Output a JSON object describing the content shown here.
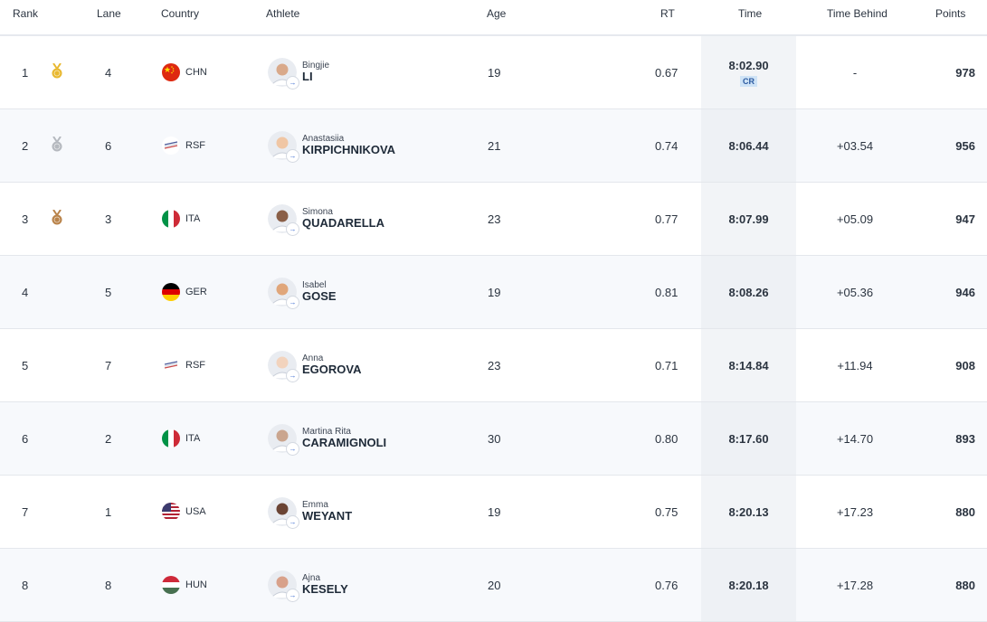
{
  "columns": {
    "rank": "Rank",
    "lane": "Lane",
    "country": "Country",
    "athlete": "Athlete",
    "age": "Age",
    "rt": "RT",
    "time": "Time",
    "time_behind": "Time Behind",
    "points": "Points"
  },
  "colors": {
    "gold": "#e8b830",
    "silver": "#b5b9bf",
    "bronze": "#b9834a",
    "cr_badge_bg": "#cfe3f6",
    "cr_badge_text": "#2c5aa0",
    "time_column_bg": "#f2f4f7"
  },
  "rows": [
    {
      "rank": "1",
      "medal": "gold-medal-icon",
      "lane": "4",
      "country": "CHN",
      "flag": "china-flag-icon",
      "given_name": "Bingjie",
      "family_name": "LI",
      "age": "19",
      "rt": "0.67",
      "time": "8:02.90",
      "record": "CR",
      "time_behind": "-",
      "points": "978"
    },
    {
      "rank": "2",
      "medal": "silver-medal-icon",
      "lane": "6",
      "country": "RSF",
      "flag": "rsf-flag-icon",
      "given_name": "Anastasiia",
      "family_name": "KIRPICHNIKOVA",
      "age": "21",
      "rt": "0.74",
      "time": "8:06.44",
      "record": "",
      "time_behind": "+03.54",
      "points": "956"
    },
    {
      "rank": "3",
      "medal": "bronze-medal-icon",
      "lane": "3",
      "country": "ITA",
      "flag": "italy-flag-icon",
      "given_name": "Simona",
      "family_name": "QUADARELLA",
      "age": "23",
      "rt": "0.77",
      "time": "8:07.99",
      "record": "",
      "time_behind": "+05.09",
      "points": "947"
    },
    {
      "rank": "4",
      "medal": "",
      "lane": "5",
      "country": "GER",
      "flag": "germany-flag-icon",
      "given_name": "Isabel",
      "family_name": "GOSE",
      "age": "19",
      "rt": "0.81",
      "time": "8:08.26",
      "record": "",
      "time_behind": "+05.36",
      "points": "946"
    },
    {
      "rank": "5",
      "medal": "",
      "lane": "7",
      "country": "RSF",
      "flag": "rsf-flag-icon",
      "given_name": "Anna",
      "family_name": "EGOROVA",
      "age": "23",
      "rt": "0.71",
      "time": "8:14.84",
      "record": "",
      "time_behind": "+11.94",
      "points": "908"
    },
    {
      "rank": "6",
      "medal": "",
      "lane": "2",
      "country": "ITA",
      "flag": "italy-flag-icon",
      "given_name": "Martina Rita",
      "family_name": "CARAMIGNOLI",
      "age": "30",
      "rt": "0.80",
      "time": "8:17.60",
      "record": "",
      "time_behind": "+14.70",
      "points": "893"
    },
    {
      "rank": "7",
      "medal": "",
      "lane": "1",
      "country": "USA",
      "flag": "usa-flag-icon",
      "given_name": "Emma",
      "family_name": "WEYANT",
      "age": "19",
      "rt": "0.75",
      "time": "8:20.13",
      "record": "",
      "time_behind": "+17.23",
      "points": "880"
    },
    {
      "rank": "8",
      "medal": "",
      "lane": "8",
      "country": "HUN",
      "flag": "hungary-flag-icon",
      "given_name": "Ajna",
      "family_name": "KESELY",
      "age": "20",
      "rt": "0.76",
      "time": "8:20.18",
      "record": "",
      "time_behind": "+17.28",
      "points": "880"
    }
  ]
}
